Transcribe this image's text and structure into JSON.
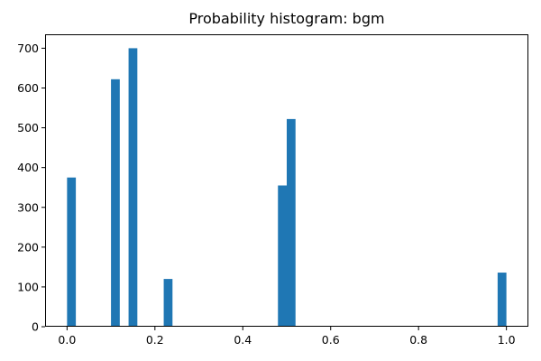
{
  "chart_data": {
    "type": "bar",
    "title": "Probability histogram: bgm",
    "xlabel": "",
    "ylabel": "",
    "xlim": [
      -0.05,
      1.05
    ],
    "ylim": [
      0,
      735
    ],
    "xticks": [
      0.0,
      0.2,
      0.4,
      0.6,
      0.8,
      1.0
    ],
    "xtick_labels": [
      "0.0",
      "0.2",
      "0.4",
      "0.6",
      "0.8",
      "1.0"
    ],
    "yticks": [
      0,
      100,
      200,
      300,
      400,
      500,
      600,
      700
    ],
    "ytick_labels": [
      "0",
      "100",
      "200",
      "300",
      "400",
      "500",
      "600",
      "700"
    ],
    "bar_color": "#1f77b4",
    "bins": [
      {
        "x0": 0.0,
        "x1": 0.02,
        "count": 375
      },
      {
        "x0": 0.1,
        "x1": 0.12,
        "count": 622
      },
      {
        "x0": 0.14,
        "x1": 0.16,
        "count": 700
      },
      {
        "x0": 0.16,
        "x1": 0.18,
        "count": 2
      },
      {
        "x0": 0.22,
        "x1": 0.24,
        "count": 120
      },
      {
        "x0": 0.48,
        "x1": 0.5,
        "count": 355
      },
      {
        "x0": 0.5,
        "x1": 0.52,
        "count": 522
      },
      {
        "x0": 0.98,
        "x1": 1.0,
        "count": 136
      }
    ],
    "grid": false,
    "legend": "none"
  }
}
